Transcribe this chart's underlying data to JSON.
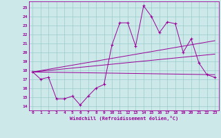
{
  "xlabel": "Windchill (Refroidissement éolien,°C)",
  "background_color": "#cce8e8",
  "line_color": "#990099",
  "grid_color": "#99cccc",
  "xlim": [
    -0.5,
    23.5
  ],
  "ylim": [
    13.5,
    25.7
  ],
  "yticks": [
    14,
    15,
    16,
    17,
    18,
    19,
    20,
    21,
    22,
    23,
    24,
    25
  ],
  "xticks": [
    0,
    1,
    2,
    3,
    4,
    5,
    6,
    7,
    8,
    9,
    10,
    11,
    12,
    13,
    14,
    15,
    16,
    17,
    18,
    19,
    20,
    21,
    22,
    23
  ],
  "series": {
    "line1_x": [
      0,
      1,
      2,
      3,
      4,
      5,
      6,
      7,
      8,
      9,
      10,
      11,
      12,
      13,
      14,
      15,
      16,
      17,
      18,
      19,
      20,
      21,
      22,
      23
    ],
    "line1_y": [
      17.8,
      17.0,
      17.2,
      14.8,
      14.8,
      15.1,
      14.1,
      15.1,
      16.0,
      16.4,
      20.8,
      23.3,
      23.3,
      20.7,
      25.2,
      24.0,
      22.2,
      23.4,
      23.2,
      20.0,
      21.5,
      18.8,
      17.5,
      17.2
    ],
    "line2_x": [
      0,
      23
    ],
    "line2_y": [
      17.8,
      17.5
    ],
    "line3_x": [
      0,
      23
    ],
    "line3_y": [
      17.8,
      19.8
    ],
    "line4_x": [
      0,
      23
    ],
    "line4_y": [
      17.8,
      21.3
    ]
  }
}
